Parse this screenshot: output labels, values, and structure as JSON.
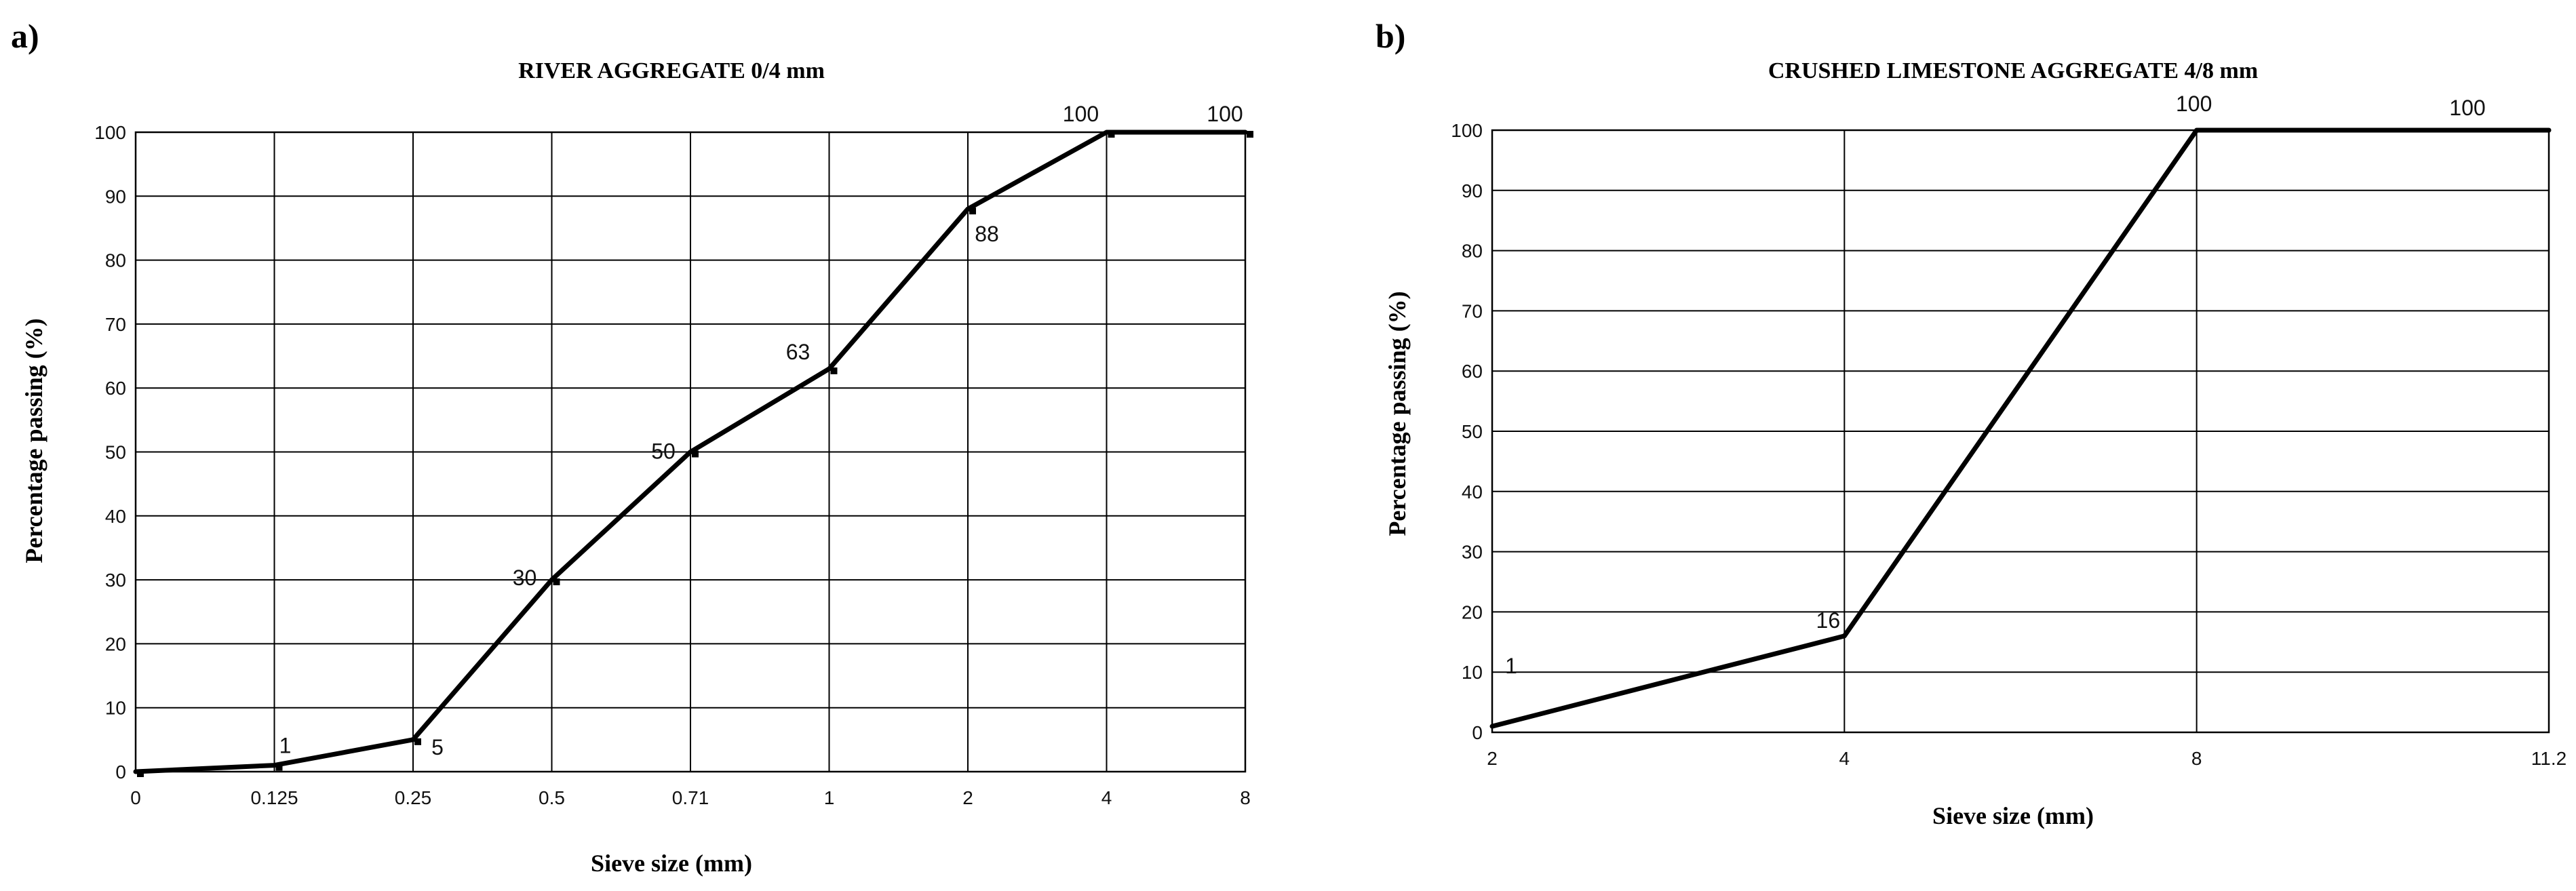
{
  "chart_data": [
    {
      "panel": "a)",
      "type": "line",
      "title": "RIVER AGGREGATE  0/4 mm",
      "xlabel": "Sieve size (mm)",
      "ylabel": "Percentage passing (%)",
      "categories": [
        "0",
        "0.125",
        "0.25",
        "0.5",
        "0.71",
        "1",
        "2",
        "4",
        "8"
      ],
      "series": [
        {
          "values": [
            0,
            1,
            5,
            30,
            50,
            63,
            88,
            100,
            100
          ]
        }
      ],
      "point_labels": [
        "",
        "1",
        "5",
        "30",
        "50",
        "63",
        "88",
        "100",
        "100"
      ],
      "yticks": [
        "0",
        "10",
        "20",
        "30",
        "40",
        "50",
        "60",
        "70",
        "80",
        "90",
        "100"
      ],
      "ylim": [
        0,
        100
      ],
      "grid": true,
      "markers": true,
      "legend": "none"
    },
    {
      "panel": "b)",
      "type": "line",
      "title": "CRUSHED LIMESTONE AGGREGATE  4/8 mm",
      "xlabel": "Sieve size (mm)",
      "ylabel": "Percentage passing (%)",
      "categories": [
        "2",
        "4",
        "8",
        "11.2"
      ],
      "series": [
        {
          "values": [
            1,
            16,
            100,
            100
          ]
        }
      ],
      "point_labels": [
        "1",
        "16",
        "100",
        "100"
      ],
      "yticks": [
        "0",
        "10",
        "20",
        "30",
        "40",
        "50",
        "60",
        "70",
        "80",
        "90",
        "100"
      ],
      "ylim": [
        0,
        100
      ],
      "grid": true,
      "markers": false,
      "legend": "none"
    }
  ]
}
